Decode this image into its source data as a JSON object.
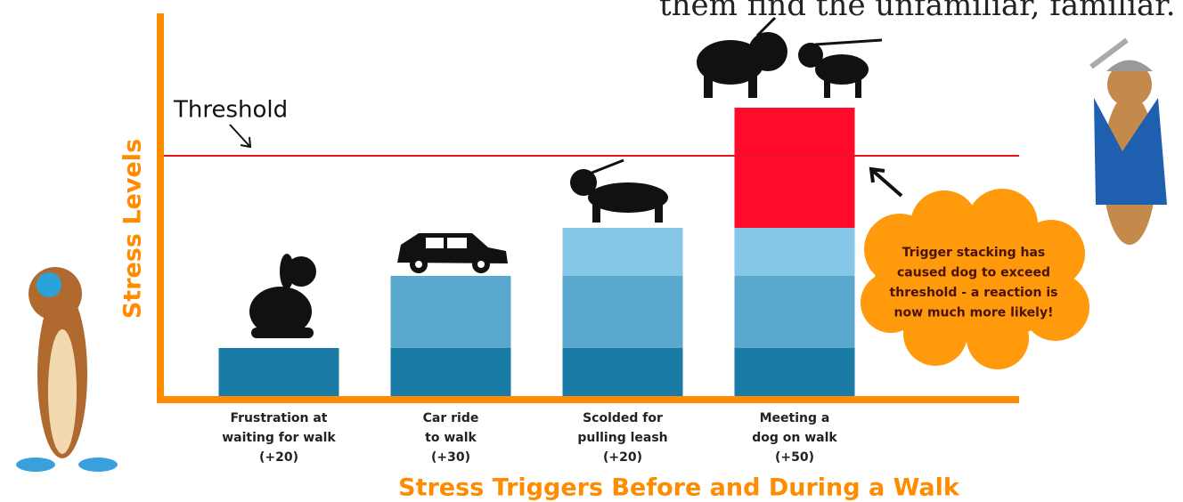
{
  "top_text": "them find the unfamiliar, familiar.",
  "chart_data": {
    "type": "stacked_bar",
    "categories": [
      [
        "Frustration at",
        "waiting for walk",
        "(+20)"
      ],
      [
        "Car ride",
        "to walk",
        "(+30)"
      ],
      [
        "Scolded for",
        "pulling leash",
        "(+20)"
      ],
      [
        "Meeting a",
        "dog on walk",
        "(+50)"
      ]
    ],
    "series": [
      {
        "color": "#1a7ba6",
        "values": [
          20,
          20,
          20,
          20
        ]
      },
      {
        "color": "#5aa8cd",
        "values": [
          null,
          30,
          30,
          30
        ]
      },
      {
        "color": "#86c6e6",
        "values": [
          null,
          null,
          20,
          20
        ]
      },
      {
        "color": "#ff0a2a",
        "values": [
          null,
          null,
          null,
          50
        ]
      }
    ],
    "ylim": [
      0,
      160
    ],
    "y_label": "Stress Levels",
    "x_label": "Stress Triggers Before and During a Walk",
    "threshold": {
      "label": "Threshold",
      "value": 100,
      "color": "#e8141e"
    },
    "annotation": [
      "Trigger stacking has",
      "caused dog to exceed",
      "threshold - a reaction is",
      "now much more likely!"
    ]
  }
}
